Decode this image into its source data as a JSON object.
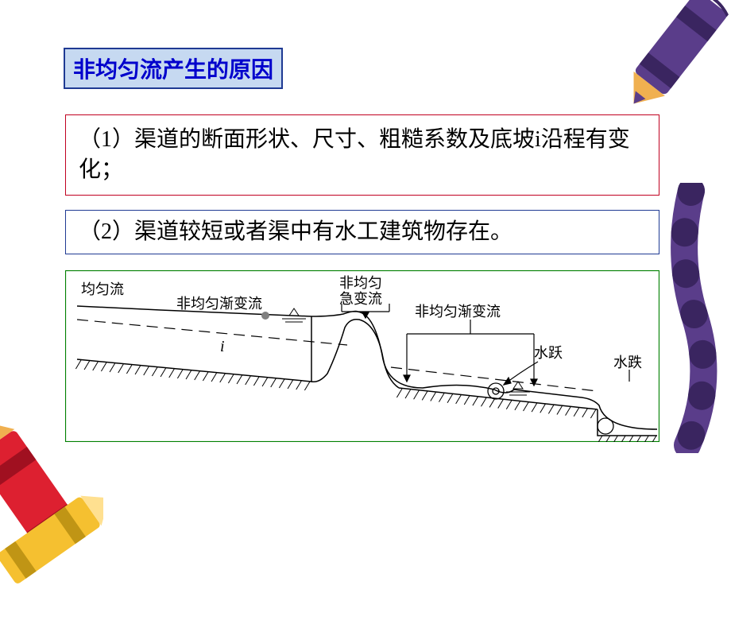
{
  "colors": {
    "title_bg": "#c6d9f1",
    "title_border": "#1f3a93",
    "title_text": "#0000cc",
    "reason1_bg": "#ffffff",
    "reason1_border": "#c00020",
    "reason1_text": "#000000",
    "reason2_bg": "#ffffff",
    "reason2_border": "#1f3a93",
    "reason2_text": "#000000",
    "diagram_border": "#008000",
    "diagram_stroke": "#000000",
    "page_indicator": "#808080",
    "crayon_purple_body": "#5a3d8a",
    "crayon_purple_dark": "#3a2560",
    "crayon_tip": "#f0b050",
    "crayon_red_body": "#dd2030",
    "crayon_red_dark": "#a01020",
    "crayon_yellow_body": "#f5c030",
    "crayon_yellow_dark": "#c09515"
  },
  "title": "非均匀流产生的原因",
  "reason1": "（1）渠道的断面形状、尺寸、粗糙系数及底坡i沿程有变化；",
  "reason2": "（2）渠道较短或者渠中有水工建筑物存在。",
  "diagram": {
    "labels": {
      "uniform": "均匀流",
      "gradual1": "非均匀渐变流",
      "rapid": "非均匀",
      "rapid2": "急变流",
      "gradual2": "非均匀渐变流",
      "jump": "水跃",
      "drop": "水跌",
      "slope": "i"
    }
  }
}
